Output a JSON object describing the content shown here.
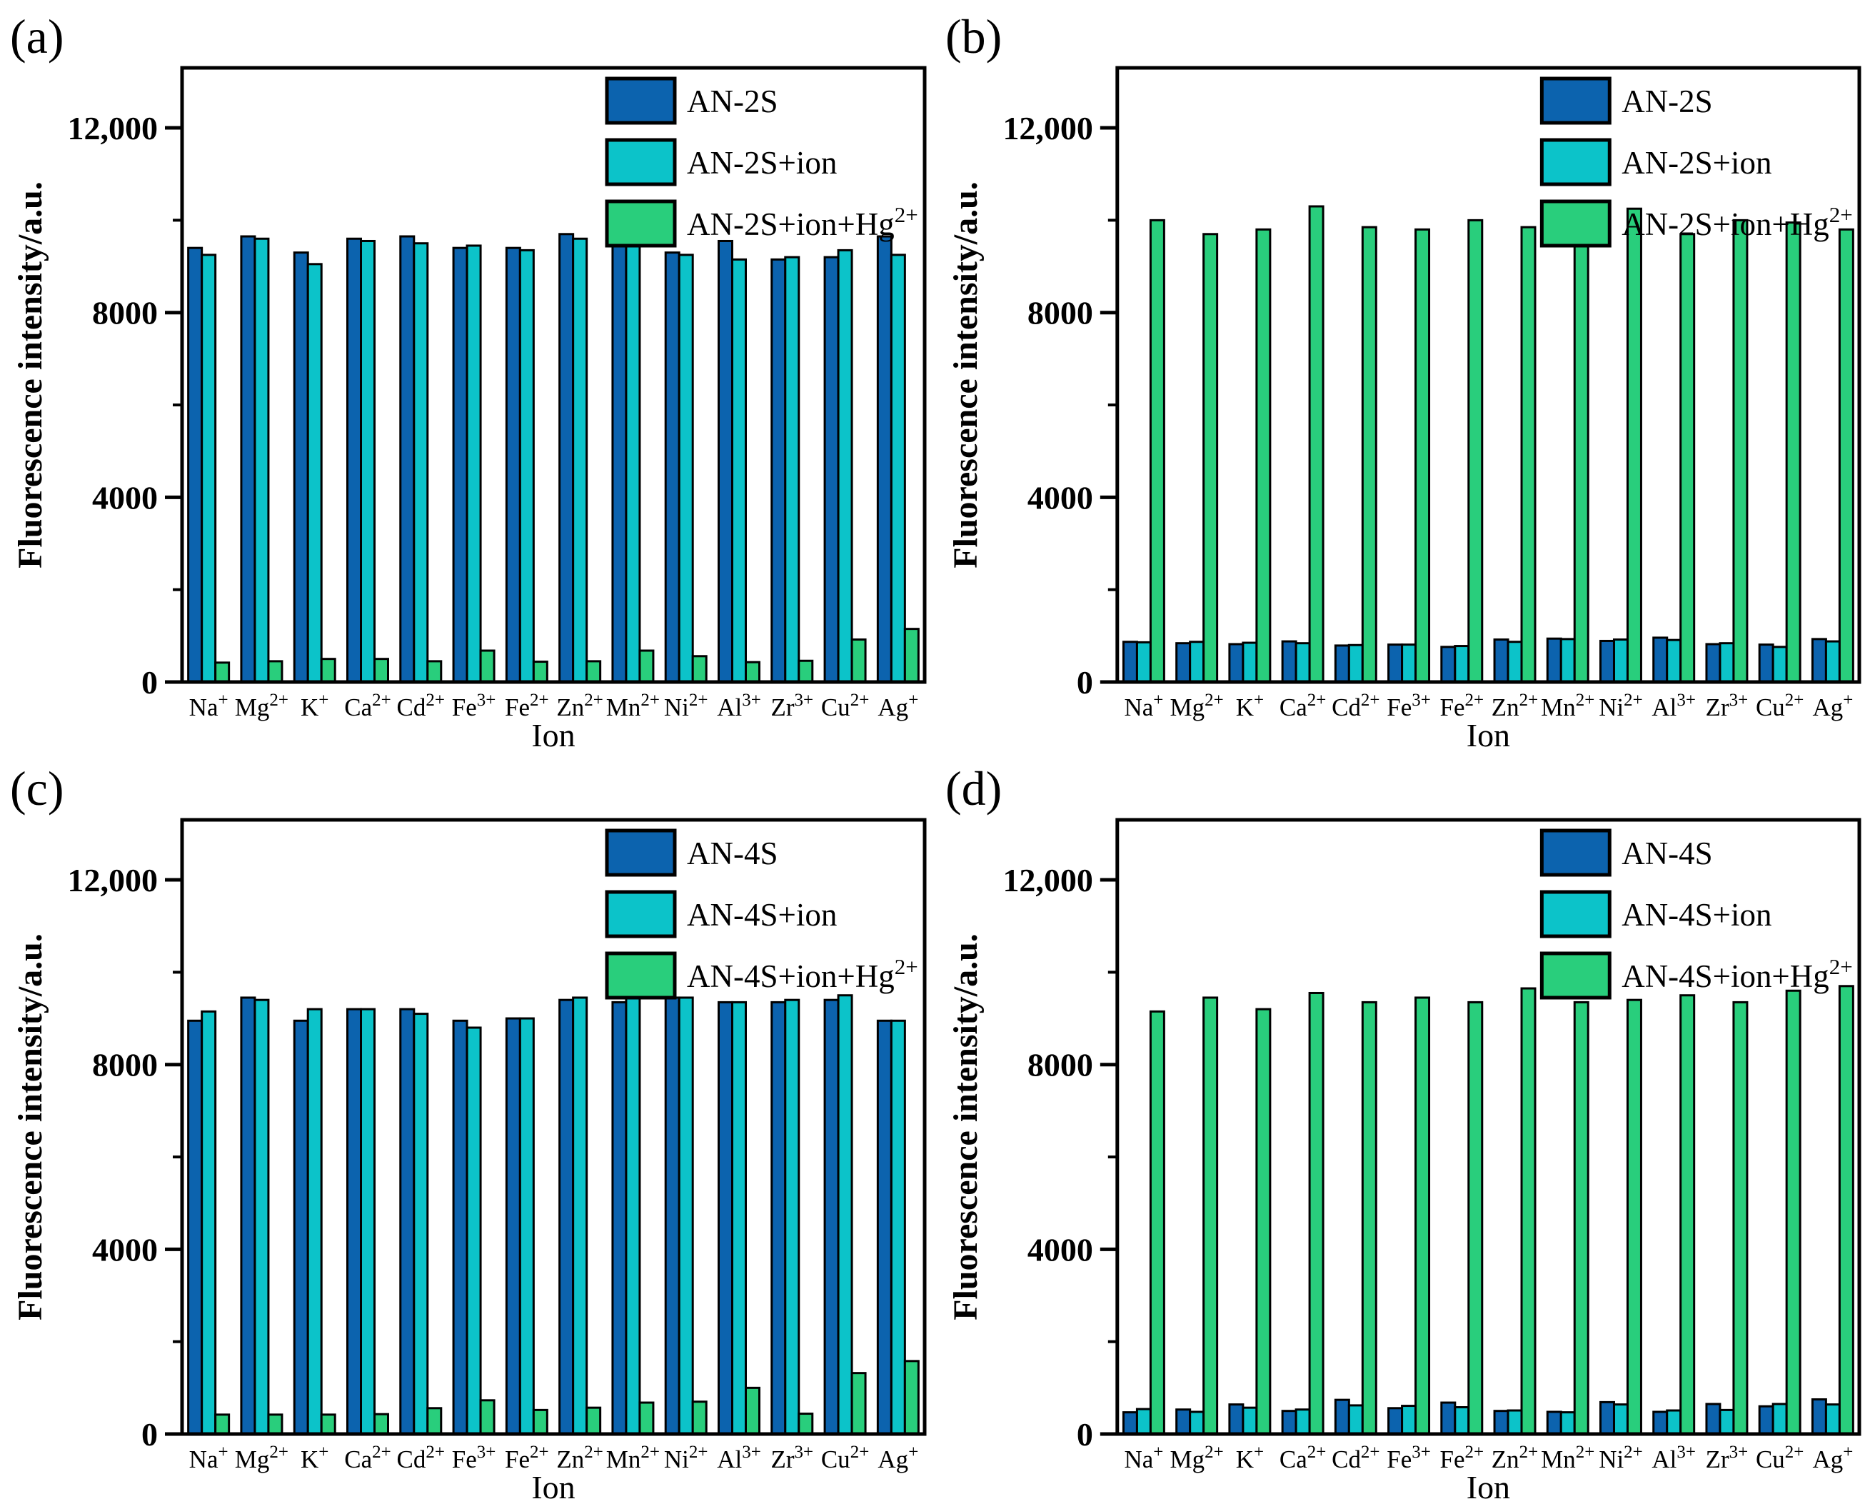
{
  "figure": {
    "background": "#ffffff",
    "panel_letters": [
      "(a)",
      "(b)",
      "(c)",
      "(d)"
    ]
  },
  "colors": {
    "series_blue": "#0c63ae",
    "series_cyan": "#0cc3c9",
    "series_green": "#29ce7c",
    "axis": "#000000",
    "text": "#000000"
  },
  "chart_data": [
    {
      "panel": "(a)",
      "type": "bar",
      "xlabel": "Ion",
      "ylabel": "Fluorescence intensity/a.u.",
      "ylim": [
        0,
        13300
      ],
      "grid": false,
      "legend_position": "top-inside-right",
      "yticks": [
        {
          "value": 0,
          "label": "0"
        },
        {
          "value": 4000,
          "label": "4000"
        },
        {
          "value": 8000,
          "label": "8000"
        },
        {
          "value": 12000,
          "label": "12,000"
        }
      ],
      "yticks_minor": [
        2000,
        6000,
        10000
      ],
      "categories": [
        {
          "base": "Na",
          "sup": "+"
        },
        {
          "base": "Mg",
          "sup": "2+"
        },
        {
          "base": "K",
          "sup": "+"
        },
        {
          "base": "Ca",
          "sup": "2+"
        },
        {
          "base": "Cd",
          "sup": "2+"
        },
        {
          "base": "Fe",
          "sup": "3+"
        },
        {
          "base": "Fe",
          "sup": "2+"
        },
        {
          "base": "Zn",
          "sup": "2+"
        },
        {
          "base": "Mn",
          "sup": "2+"
        },
        {
          "base": "Ni",
          "sup": "2+"
        },
        {
          "base": "Al",
          "sup": "3+"
        },
        {
          "base": "Zr",
          "sup": "3+"
        },
        {
          "base": "Cu",
          "sup": "2+"
        },
        {
          "base": "Ag",
          "sup": "+"
        }
      ],
      "series": [
        {
          "name": "AN-2S",
          "sup": "",
          "color": "#0c63ae",
          "values": [
            9400,
            9650,
            9300,
            9600,
            9650,
            9400,
            9400,
            9700,
            9450,
            9300,
            9550,
            9150,
            9200,
            9650
          ]
        },
        {
          "name": "AN-2S+ion",
          "sup": "",
          "color": "#0cc3c9",
          "values": [
            9250,
            9600,
            9050,
            9550,
            9500,
            9450,
            9350,
            9600,
            9750,
            9250,
            9150,
            9200,
            9350,
            9250
          ]
        },
        {
          "name": "AN-2S+ion+Hg",
          "sup": "2+",
          "color": "#29ce7c",
          "values": [
            420,
            450,
            500,
            500,
            450,
            680,
            440,
            450,
            680,
            560,
            430,
            460,
            920,
            1150
          ]
        }
      ]
    },
    {
      "panel": "(b)",
      "type": "bar",
      "xlabel": "Ion",
      "ylabel": "Fluorescence intensity/a.u.",
      "ylim": [
        0,
        13300
      ],
      "grid": false,
      "legend_position": "top-inside-right",
      "yticks": [
        {
          "value": 0,
          "label": "0"
        },
        {
          "value": 4000,
          "label": "4000"
        },
        {
          "value": 8000,
          "label": "8000"
        },
        {
          "value": 12000,
          "label": "12,000"
        }
      ],
      "yticks_minor": [
        2000,
        6000,
        10000
      ],
      "categories": [
        {
          "base": "Na",
          "sup": "+"
        },
        {
          "base": "Mg",
          "sup": "2+"
        },
        {
          "base": "K",
          "sup": "+"
        },
        {
          "base": "Ca",
          "sup": "2+"
        },
        {
          "base": "Cd",
          "sup": "2+"
        },
        {
          "base": "Fe",
          "sup": "3+"
        },
        {
          "base": "Fe",
          "sup": "2+"
        },
        {
          "base": "Zn",
          "sup": "2+"
        },
        {
          "base": "Mn",
          "sup": "2+"
        },
        {
          "base": "Ni",
          "sup": "2+"
        },
        {
          "base": "Al",
          "sup": "3+"
        },
        {
          "base": "Zr",
          "sup": "3+"
        },
        {
          "base": "Cu",
          "sup": "2+"
        },
        {
          "base": "Ag",
          "sup": "+"
        }
      ],
      "series": [
        {
          "name": "AN-2S",
          "sup": "",
          "color": "#0c63ae",
          "values": [
            870,
            840,
            820,
            880,
            790,
            810,
            760,
            920,
            940,
            890,
            960,
            820,
            810,
            930
          ]
        },
        {
          "name": "AN-2S+ion",
          "sup": "",
          "color": "#0cc3c9",
          "values": [
            860,
            870,
            850,
            840,
            800,
            810,
            780,
            870,
            930,
            920,
            910,
            840,
            760,
            880
          ]
        },
        {
          "name": "AN-2S+ion+Hg",
          "sup": "2+",
          "color": "#29ce7c",
          "values": [
            10000,
            9700,
            9800,
            10300,
            9850,
            9800,
            10000,
            9850,
            9700,
            10250,
            9700,
            10000,
            9950,
            9800
          ]
        }
      ]
    },
    {
      "panel": "(c)",
      "type": "bar",
      "xlabel": "Ion",
      "ylabel": "Fluorescence intensity/a.u.",
      "ylim": [
        0,
        13300
      ],
      "grid": false,
      "legend_position": "top-inside-right",
      "yticks": [
        {
          "value": 0,
          "label": "0"
        },
        {
          "value": 4000,
          "label": "4000"
        },
        {
          "value": 8000,
          "label": "8000"
        },
        {
          "value": 12000,
          "label": "12,000"
        }
      ],
      "yticks_minor": [
        2000,
        6000,
        10000
      ],
      "categories": [
        {
          "base": "Na",
          "sup": "+"
        },
        {
          "base": "Mg",
          "sup": "2+"
        },
        {
          "base": "K",
          "sup": "+"
        },
        {
          "base": "Ca",
          "sup": "2+"
        },
        {
          "base": "Cd",
          "sup": "2+"
        },
        {
          "base": "Fe",
          "sup": "3+"
        },
        {
          "base": "Fe",
          "sup": "2+"
        },
        {
          "base": "Zn",
          "sup": "2+"
        },
        {
          "base": "Mn",
          "sup": "2+"
        },
        {
          "base": "Ni",
          "sup": "2+"
        },
        {
          "base": "Al",
          "sup": "3+"
        },
        {
          "base": "Zr",
          "sup": "3+"
        },
        {
          "base": "Cu",
          "sup": "2+"
        },
        {
          "base": "Ag",
          "sup": "+"
        }
      ],
      "series": [
        {
          "name": "AN-4S",
          "sup": "",
          "color": "#0c63ae",
          "values": [
            8950,
            9450,
            8950,
            9200,
            9200,
            8950,
            9000,
            9400,
            9350,
            9450,
            9350,
            9350,
            9400,
            8950
          ]
        },
        {
          "name": "AN-4S+ion",
          "sup": "",
          "color": "#0cc3c9",
          "values": [
            9150,
            9400,
            9200,
            9200,
            9100,
            8800,
            9000,
            9450,
            9450,
            9450,
            9350,
            9400,
            9500,
            8950
          ]
        },
        {
          "name": "AN-4S+ion+Hg",
          "sup": "2+",
          "color": "#29ce7c",
          "values": [
            420,
            420,
            420,
            430,
            560,
            730,
            520,
            570,
            680,
            700,
            1000,
            440,
            1320,
            1580
          ]
        }
      ]
    },
    {
      "panel": "(d)",
      "type": "bar",
      "xlabel": "Ion",
      "ylabel": "Fluorescence intensity/a.u.",
      "ylim": [
        0,
        13300
      ],
      "grid": false,
      "legend_position": "top-inside-right",
      "yticks": [
        {
          "value": 0,
          "label": "0"
        },
        {
          "value": 4000,
          "label": "4000"
        },
        {
          "value": 8000,
          "label": "8000"
        },
        {
          "value": 12000,
          "label": "12,000"
        }
      ],
      "yticks_minor": [
        2000,
        6000,
        10000
      ],
      "categories": [
        {
          "base": "Na",
          "sup": "+"
        },
        {
          "base": "Mg",
          "sup": "2+"
        },
        {
          "base": "K",
          "sup": "+"
        },
        {
          "base": "Ca",
          "sup": "2+"
        },
        {
          "base": "Cd",
          "sup": "2+"
        },
        {
          "base": "Fe",
          "sup": "3+"
        },
        {
          "base": "Fe",
          "sup": "2+"
        },
        {
          "base": "Zn",
          "sup": "2+"
        },
        {
          "base": "Mn",
          "sup": "2+"
        },
        {
          "base": "Ni",
          "sup": "2+"
        },
        {
          "base": "Al",
          "sup": "3+"
        },
        {
          "base": "Zr",
          "sup": "3+"
        },
        {
          "base": "Cu",
          "sup": "2+"
        },
        {
          "base": "Ag",
          "sup": "+"
        }
      ],
      "series": [
        {
          "name": "AN-4S",
          "sup": "",
          "color": "#0c63ae",
          "values": [
            470,
            530,
            640,
            500,
            740,
            560,
            680,
            500,
            480,
            690,
            480,
            650,
            600,
            750
          ]
        },
        {
          "name": "AN-4S+ion",
          "sup": "",
          "color": "#0cc3c9",
          "values": [
            540,
            480,
            570,
            530,
            620,
            610,
            580,
            510,
            470,
            640,
            510,
            520,
            650,
            640
          ]
        },
        {
          "name": "AN-4S+ion+Hg",
          "sup": "2+",
          "color": "#29ce7c",
          "values": [
            9150,
            9450,
            9200,
            9550,
            9350,
            9450,
            9350,
            9650,
            9350,
            9400,
            9500,
            9350,
            9600,
            9700
          ]
        }
      ]
    }
  ]
}
